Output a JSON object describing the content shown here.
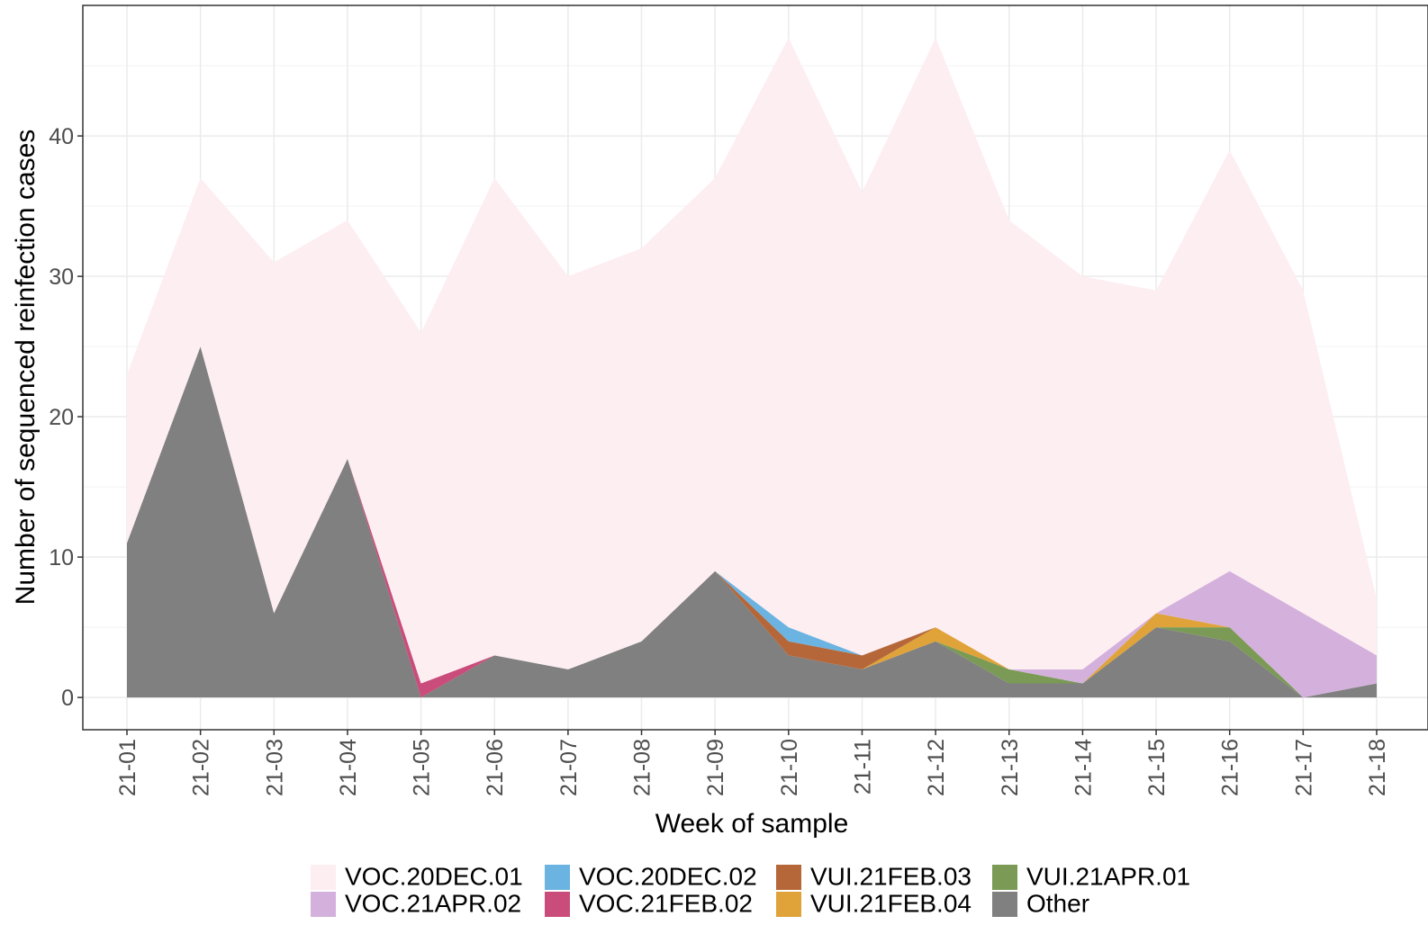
{
  "chart_data": {
    "type": "stacked-area",
    "x_label": "Week of sample",
    "y_label": "Number of sequenced reinfection cases",
    "categories": [
      "21-01",
      "21-02",
      "21-03",
      "21-04",
      "21-05",
      "21-06",
      "21-07",
      "21-08",
      "21-09",
      "21-10",
      "21-11",
      "21-12",
      "21-13",
      "21-14",
      "21-15",
      "21-16",
      "21-17",
      "21-18"
    ],
    "series": [
      {
        "name": "VOC.20DEC.01",
        "color": "#fdeef2",
        "values": [
          12,
          12,
          25,
          17,
          25,
          34,
          28,
          28,
          28,
          42,
          33,
          42,
          32,
          28,
          23,
          30,
          23,
          4
        ]
      },
      {
        "name": "VOC.21APR.02",
        "color": "#d4b1dc",
        "values": [
          0,
          0,
          0,
          0,
          0,
          0,
          0,
          0,
          0,
          0,
          0,
          0,
          0,
          1,
          0,
          4,
          6,
          2
        ]
      },
      {
        "name": "VOC.20DEC.02",
        "color": "#6bb3e0",
        "values": [
          0,
          0,
          0,
          0,
          0,
          0,
          0,
          0,
          0,
          1,
          0,
          0,
          0,
          0,
          0,
          0,
          0,
          0
        ]
      },
      {
        "name": "VOC.21FEB.02",
        "color": "#c94c7b",
        "values": [
          0,
          0,
          0,
          0,
          1,
          0,
          0,
          0,
          0,
          0,
          0,
          0,
          0,
          0,
          0,
          0,
          0,
          0
        ]
      },
      {
        "name": "VUI.21FEB.03",
        "color": "#b5673a",
        "values": [
          0,
          0,
          0,
          0,
          0,
          0,
          0,
          0,
          0,
          1,
          1,
          0,
          0,
          0,
          0,
          0,
          0,
          0
        ]
      },
      {
        "name": "VUI.21FEB.04",
        "color": "#e0a33a",
        "values": [
          0,
          0,
          0,
          0,
          0,
          0,
          0,
          0,
          0,
          0,
          0,
          1,
          0,
          0,
          1,
          0,
          0,
          0
        ]
      },
      {
        "name": "VUI.21APR.01",
        "color": "#7a9a55",
        "values": [
          0,
          0,
          0,
          0,
          0,
          0,
          0,
          0,
          0,
          0,
          0,
          0,
          1,
          0,
          0,
          1,
          0,
          0
        ]
      },
      {
        "name": "Other",
        "color": "#808080",
        "values": [
          11,
          25,
          6,
          17,
          0,
          3,
          2,
          4,
          9,
          3,
          2,
          4,
          1,
          1,
          5,
          4,
          0,
          1
        ]
      }
    ],
    "ylim": [
      -2.3,
      49.3
    ],
    "yticks": [
      0,
      10,
      20,
      30,
      40
    ],
    "grid": true
  }
}
